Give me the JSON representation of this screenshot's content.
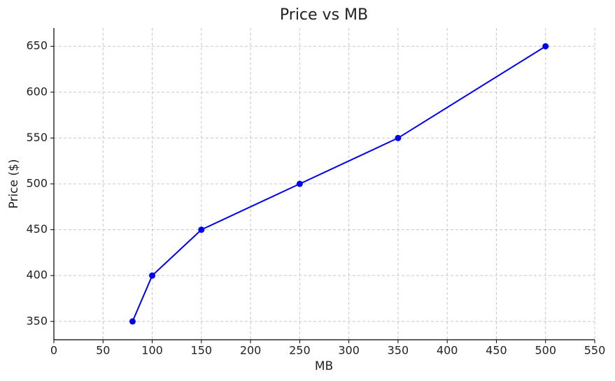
{
  "chart_data": {
    "type": "line",
    "title": "Price vs MB",
    "x_label": "MB",
    "y_label": "Price ($)",
    "x": [
      80,
      100,
      150,
      250,
      350,
      500
    ],
    "series": [
      {
        "color": "#0000ee",
        "values": [
          350,
          400,
          450,
          500,
          550,
          650
        ]
      }
    ],
    "xlim": [
      0,
      550
    ],
    "xticks": [
      0,
      50,
      100,
      150,
      200,
      250,
      300,
      350,
      400,
      450,
      500,
      550
    ],
    "ylim": [
      330,
      670
    ],
    "yticks": [
      350,
      400,
      450,
      500,
      550,
      600,
      650
    ],
    "grid": true,
    "markers": true
  }
}
